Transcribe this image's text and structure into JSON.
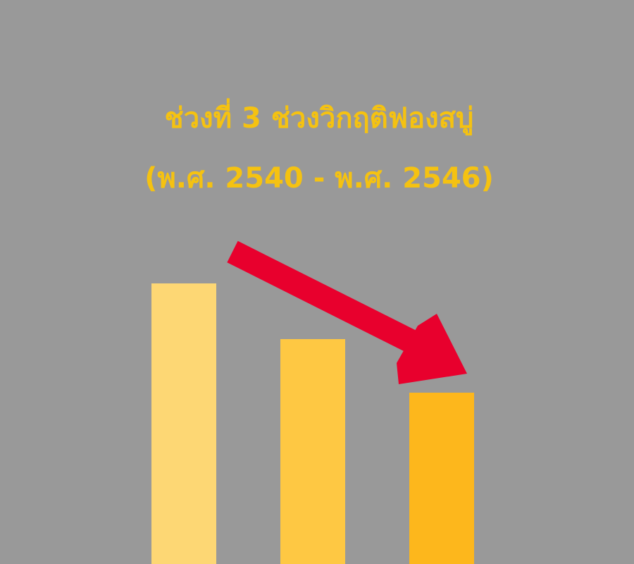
{
  "title": "ช่วงที่ 3 ช่วงวิกฤติฟองสบู่",
  "subtitle": "(พ.ศ. 2540 - พ.ศ. 2546)"
}
